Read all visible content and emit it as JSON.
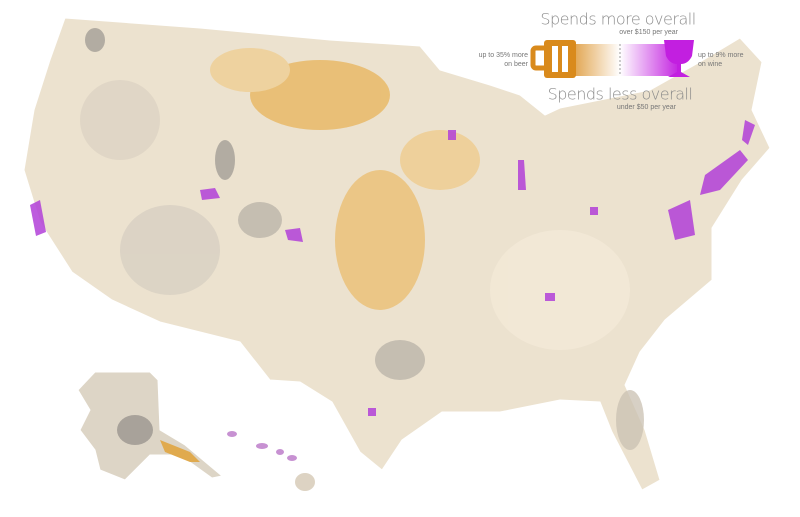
{
  "legend": {
    "top_title": "Spends more overall",
    "top_subtitle": "over $150 per year",
    "left_label": [
      "up to 35% more",
      "on beer"
    ],
    "right_label": [
      "up to 9% more",
      "on wine"
    ],
    "bottom_title": "Spends less overall",
    "bottom_subtitle": "under $50 per year"
  }
}
